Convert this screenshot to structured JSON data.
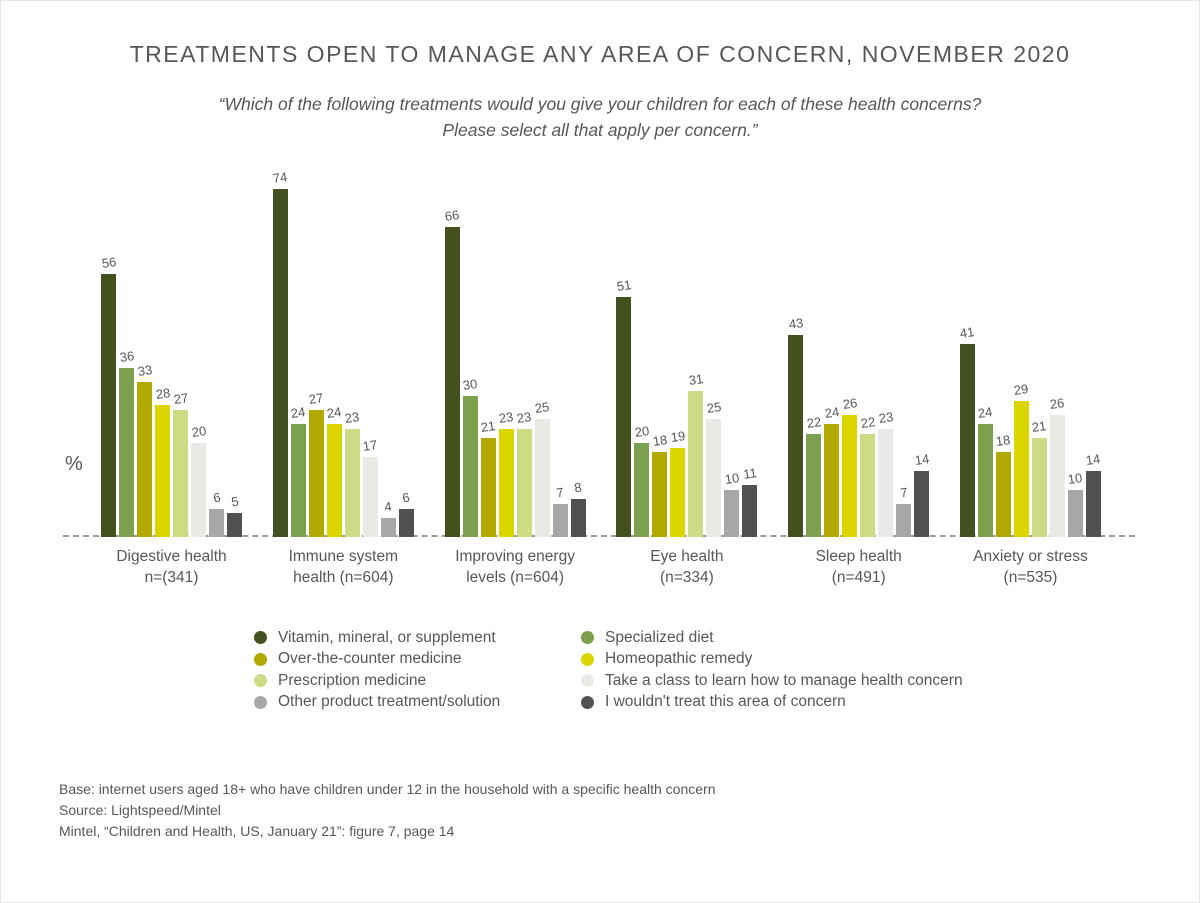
{
  "header": {
    "title": "TREATMENTS OPEN TO MANAGE ANY AREA OF CONCERN, NOVEMBER 2020",
    "subtitle_line1": "“Which of the following treatments would you give your children for each of these health concerns?",
    "subtitle_line2": "Please select all that apply per concern.”"
  },
  "chart_data": {
    "type": "bar",
    "title": "TREATMENTS OPEN TO MANAGE ANY AREA OF CONCERN, NOVEMBER 2020",
    "ylabel": "%",
    "ylim": [
      0,
      80
    ],
    "grid": false,
    "value_labels": true,
    "legend_position": "bottom-two-columns",
    "categories": [
      {
        "line1": "Digestive health",
        "line2": "n=(341)"
      },
      {
        "line1": "Immune system",
        "line2": "health (n=604)"
      },
      {
        "line1": "Improving energy",
        "line2": "levels (n=604)"
      },
      {
        "line1": "Eye health",
        "line2": "(n=334)"
      },
      {
        "line1": "Sleep health",
        "line2": "(n=491)"
      },
      {
        "line1": "Anxiety or stress",
        "line2": "(n=535)"
      }
    ],
    "series": [
      {
        "name": "Vitamin, mineral, or supplement",
        "color": "#44501e",
        "values": [
          56,
          74,
          66,
          51,
          43,
          41
        ]
      },
      {
        "name": "Specialized diet",
        "color": "#7ba04e",
        "values": [
          36,
          24,
          30,
          20,
          22,
          24
        ]
      },
      {
        "name": "Over-the-counter medicine",
        "color": "#b1a900",
        "values": [
          33,
          27,
          21,
          18,
          24,
          18
        ]
      },
      {
        "name": "Homeopathic remedy",
        "color": "#dcd600",
        "values": [
          28,
          24,
          23,
          19,
          26,
          29
        ]
      },
      {
        "name": "Prescription medicine",
        "color": "#cbdc85",
        "values": [
          27,
          23,
          23,
          31,
          22,
          21
        ]
      },
      {
        "name": "Take a class to learn how to manage health concern",
        "color": "#e9e9e6",
        "values": [
          20,
          17,
          25,
          25,
          23,
          26
        ]
      },
      {
        "name": "Other product treatment/solution",
        "color": "#a7a7a7",
        "values": [
          6,
          4,
          7,
          10,
          7,
          10
        ]
      },
      {
        "name": "I wouldn't treat this area of concern",
        "color": "#515153",
        "values": [
          5,
          6,
          8,
          11,
          14,
          14
        ]
      }
    ],
    "legend_columns": [
      [
        0,
        2,
        4,
        6
      ],
      [
        1,
        3,
        5,
        7
      ]
    ]
  },
  "footer": {
    "line1": "Base: internet users aged 18+ who have children under 12 in the household with a specific health concern",
    "line2": "Source: Lightspeed/Mintel",
    "line3": "Mintel, “Children and Health, US, January 21”: figure 7, page 14"
  }
}
